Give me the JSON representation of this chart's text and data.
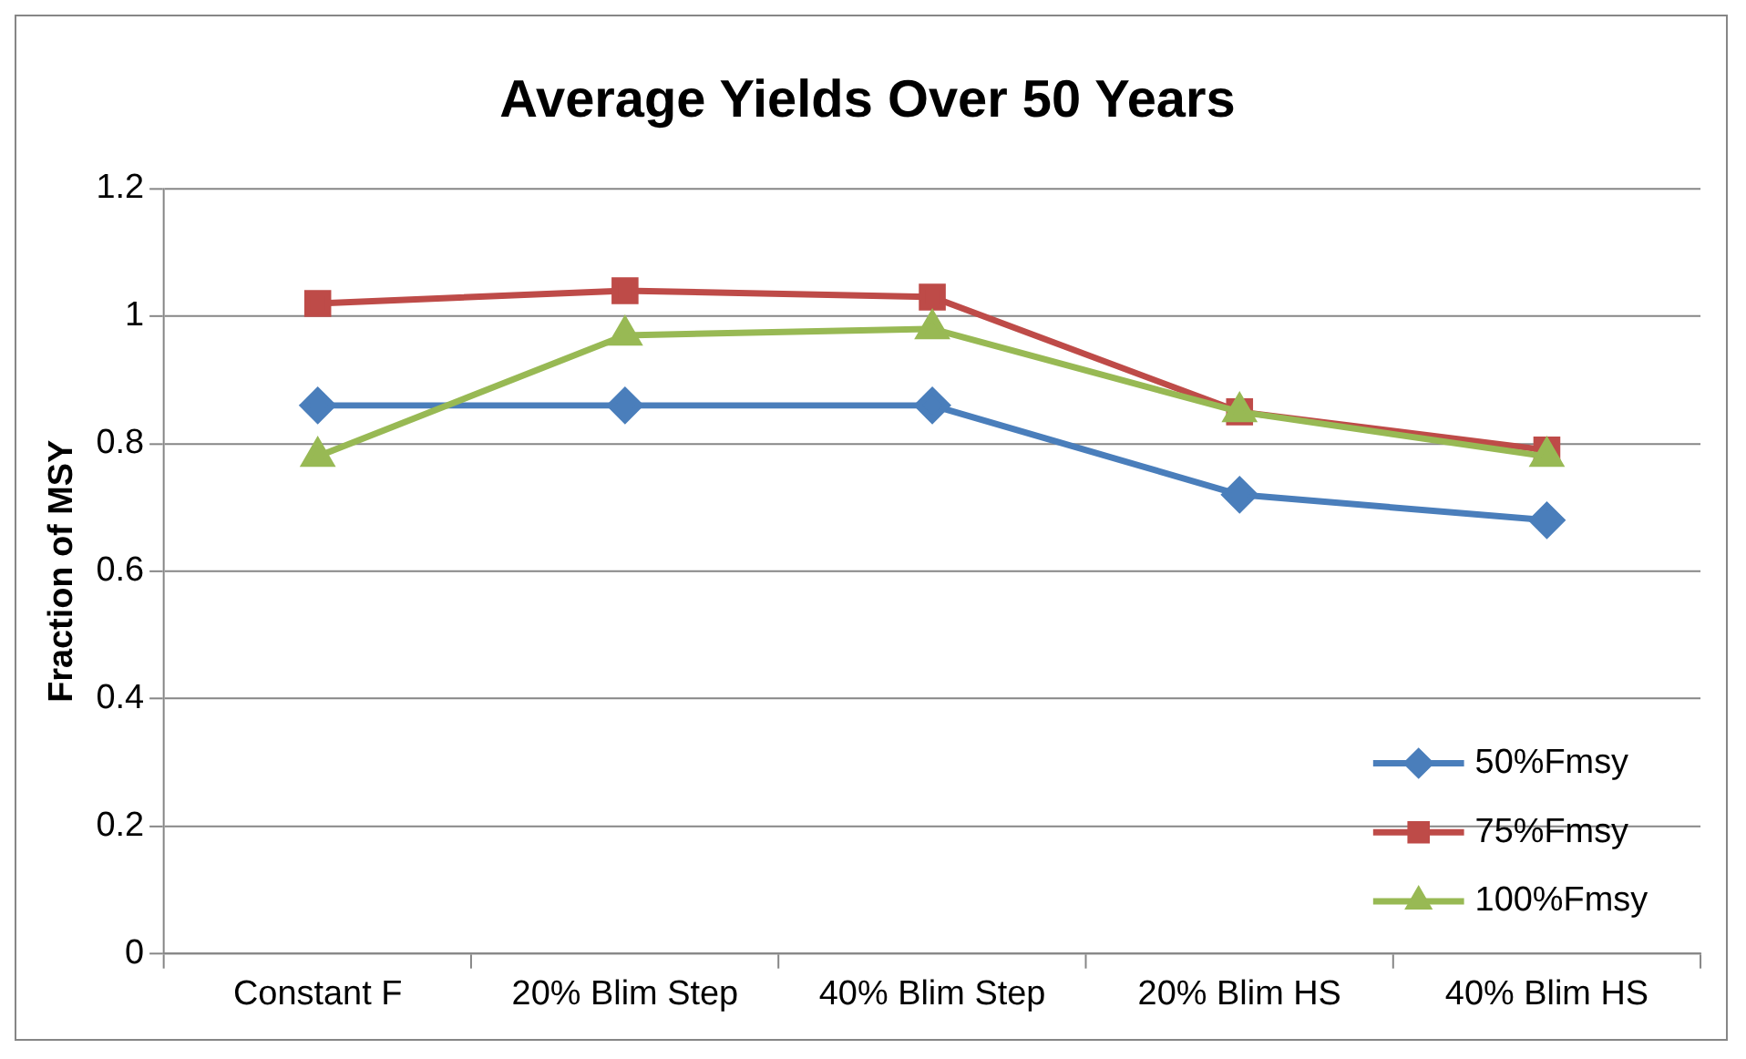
{
  "chart_data": {
    "type": "line",
    "title": "Average Yields Over 50 Years",
    "ylabel": "Fraction of MSY",
    "categories": [
      "Constant F",
      "20% Blim Step",
      "40% Blim Step",
      "20% Blim HS",
      "40% Blim HS"
    ],
    "series": [
      {
        "name": "50%Fmsy",
        "color": "#4a7ebb",
        "marker": "diamond",
        "values": [
          0.86,
          0.86,
          0.86,
          0.72,
          0.68
        ]
      },
      {
        "name": "75%Fmsy",
        "color": "#be4b48",
        "marker": "square",
        "values": [
          1.02,
          1.04,
          1.03,
          0.85,
          0.79
        ]
      },
      {
        "name": "100%Fmsy",
        "color": "#98b954",
        "marker": "triangle",
        "values": [
          0.78,
          0.97,
          0.98,
          0.85,
          0.78
        ]
      }
    ],
    "ylim": [
      0,
      1.2
    ],
    "yticks": [
      0,
      0.2,
      0.4,
      0.6,
      0.8,
      1,
      1.2
    ],
    "grid": "y",
    "legend": "bottom right",
    "line_style": "solid"
  }
}
